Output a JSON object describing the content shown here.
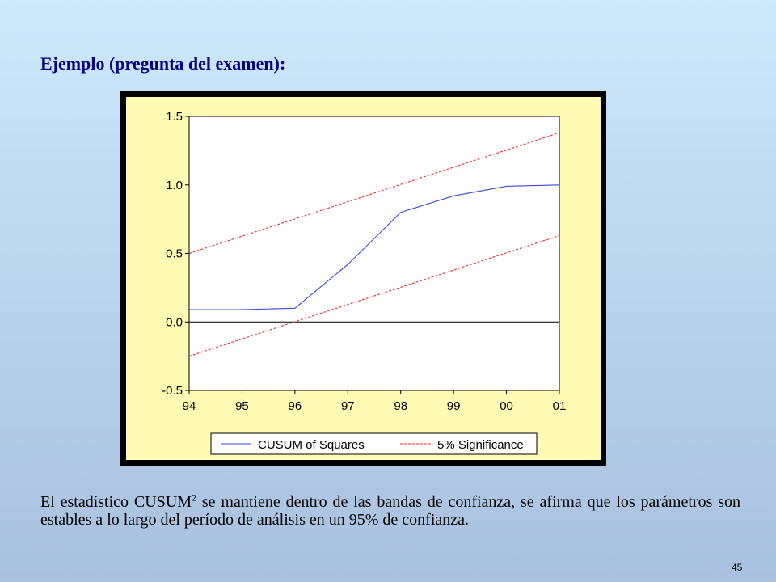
{
  "slide": {
    "heading": "Ejemplo (pregunta del examen):",
    "caption_before": "El estadístico CUSUM",
    "caption_sup": "2",
    "caption_after": " se mantiene dentro de las bandas de confianza, se afirma que los parámetros son estables a lo largo del período de análisis en un 95% de confianza.",
    "page_number": "45"
  },
  "chart_data": {
    "type": "line",
    "x": [
      "94",
      "95",
      "96",
      "97",
      "98",
      "99",
      "00",
      "01"
    ],
    "xlim": [
      1994,
      2001
    ],
    "ylim": [
      -0.5,
      1.5
    ],
    "yticks": [
      "-0.5",
      "0.0",
      "0.5",
      "1.0",
      "1.5"
    ],
    "ytick_values": [
      -0.5,
      0.0,
      0.5,
      1.0,
      1.5
    ],
    "zero_line": true,
    "legend_position": "bottom",
    "series": [
      {
        "name": "CUSUM of Squares",
        "color": "#3a48d8",
        "style": "solid",
        "points": [
          [
            1994,
            0.09
          ],
          [
            1995,
            0.09
          ],
          [
            1996,
            0.1
          ],
          [
            1997,
            0.42
          ],
          [
            1998,
            0.8
          ],
          [
            1999,
            0.92
          ],
          [
            2000,
            0.99
          ],
          [
            2001,
            1.0
          ]
        ]
      },
      {
        "name": "5% Significance",
        "color": "#e03030",
        "style": "dashed",
        "points": [
          [
            1994,
            0.5
          ],
          [
            2001,
            1.38
          ]
        ]
      },
      {
        "name": "",
        "color": "#e03030",
        "style": "dashed",
        "points": [
          [
            1994,
            -0.25
          ],
          [
            2001,
            0.63
          ]
        ]
      }
    ]
  }
}
